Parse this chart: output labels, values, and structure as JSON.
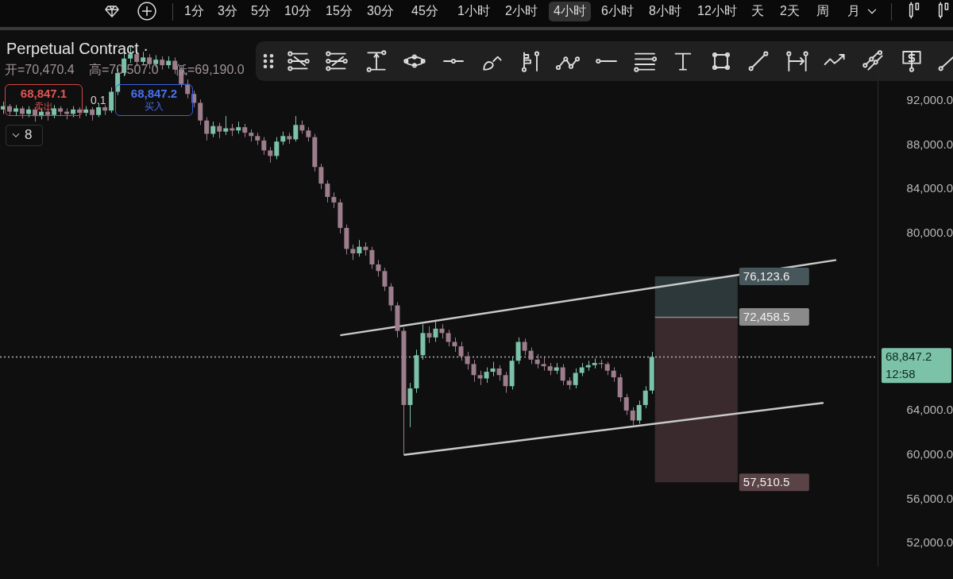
{
  "chart_data": {
    "type": "candlestick",
    "title": "Perpetual Contract ·",
    "categories": [
      null,
      null,
      null,
      null,
      null,
      null,
      null,
      null,
      null,
      null,
      null,
      null,
      null,
      null,
      null,
      null,
      null,
      null,
      null,
      null,
      null,
      null,
      null,
      null,
      null,
      null,
      null,
      null,
      null,
      null,
      null,
      null,
      null,
      null,
      null,
      null,
      null,
      null,
      null,
      null,
      null,
      null,
      null,
      null,
      null,
      null,
      null,
      null,
      null,
      null,
      null,
      null,
      null,
      null,
      null,
      null,
      null,
      null,
      null,
      null,
      null,
      null,
      null,
      null,
      null,
      null,
      null,
      null,
      null,
      null,
      null,
      null,
      null,
      null,
      null,
      null,
      null,
      null,
      null,
      null,
      null,
      null,
      null,
      null,
      null,
      null,
      null,
      null,
      null,
      null,
      null,
      null,
      null,
      null,
      null,
      null,
      null,
      null,
      null,
      null,
      null,
      null,
      null,
      null,
      null,
      null,
      null,
      null,
      null,
      null,
      null,
      null,
      null,
      null,
      null,
      null,
      null,
      null,
      null,
      null,
      null,
      null,
      null,
      null,
      null,
      null,
      null,
      null,
      null,
      null,
      null,
      null,
      null,
      null,
      null,
      null,
      null,
      null
    ],
    "ohlc": [
      [
        91200,
        91900,
        90800,
        91500
      ],
      [
        91500,
        91700,
        90700,
        91000
      ],
      [
        91000,
        91600,
        90600,
        91300
      ],
      [
        91300,
        91500,
        90400,
        90800
      ],
      [
        90800,
        91500,
        90500,
        91200
      ],
      [
        91200,
        91400,
        90100,
        90600
      ],
      [
        90600,
        91300,
        90300,
        91000
      ],
      [
        91000,
        91200,
        90200,
        90700
      ],
      [
        90700,
        91600,
        90400,
        91300
      ],
      [
        91300,
        91500,
        90600,
        91000
      ],
      [
        91000,
        91300,
        90300,
        90800
      ],
      [
        90800,
        91500,
        90500,
        91200
      ],
      [
        91200,
        91400,
        90400,
        90900
      ],
      [
        90900,
        91500,
        90600,
        91200
      ],
      [
        91200,
        91400,
        90200,
        90700
      ],
      [
        90700,
        91700,
        90500,
        91400
      ],
      [
        91400,
        91600,
        90700,
        91100
      ],
      [
        91100,
        93200,
        90900,
        92800
      ],
      [
        92800,
        94900,
        92500,
        94500
      ],
      [
        94500,
        96300,
        94200,
        95800
      ],
      [
        95800,
        96900,
        95400,
        96200
      ],
      [
        96200,
        96600,
        95100,
        95500
      ],
      [
        95500,
        96400,
        95200,
        95900
      ],
      [
        95900,
        96200,
        94900,
        95300
      ],
      [
        95300,
        96100,
        95000,
        95700
      ],
      [
        95700,
        96000,
        94800,
        95200
      ],
      [
        95200,
        96000,
        94900,
        95600
      ],
      [
        95600,
        95900,
        94400,
        94800
      ],
      [
        94800,
        95100,
        93200,
        93500
      ],
      [
        93500,
        93900,
        92200,
        92600
      ],
      [
        92600,
        92900,
        91400,
        91800
      ],
      [
        91800,
        92100,
        89800,
        90200
      ],
      [
        90200,
        90500,
        88400,
        89000
      ],
      [
        89000,
        90100,
        88700,
        89700
      ],
      [
        89700,
        90000,
        88600,
        89200
      ],
      [
        89200,
        90600,
        88900,
        89500
      ],
      [
        89500,
        89900,
        88800,
        89300
      ],
      [
        89300,
        90100,
        89000,
        89600
      ],
      [
        89600,
        89900,
        88700,
        89100
      ],
      [
        89100,
        89400,
        88300,
        88800
      ],
      [
        88800,
        89100,
        88000,
        88400
      ],
      [
        88400,
        88700,
        87100,
        87500
      ],
      [
        87500,
        87800,
        86400,
        87000
      ],
      [
        87000,
        88700,
        86700,
        88300
      ],
      [
        88300,
        89200,
        88000,
        88800
      ],
      [
        88800,
        89100,
        88100,
        88500
      ],
      [
        88500,
        90600,
        88300,
        89800
      ],
      [
        89800,
        90200,
        89000,
        89300
      ],
      [
        89300,
        89600,
        88300,
        88700
      ],
      [
        88700,
        89000,
        85600,
        86000
      ],
      [
        86000,
        86300,
        84000,
        84500
      ],
      [
        84500,
        84800,
        82800,
        83300
      ],
      [
        83300,
        83700,
        82300,
        82800
      ],
      [
        82800,
        83100,
        80000,
        80500
      ],
      [
        80500,
        80800,
        78100,
        78600
      ],
      [
        78600,
        79000,
        77600,
        78200
      ],
      [
        78200,
        79400,
        77900,
        78800
      ],
      [
        78800,
        79200,
        78000,
        78500
      ],
      [
        78500,
        78800,
        76800,
        77200
      ],
      [
        77200,
        77600,
        76100,
        76600
      ],
      [
        76600,
        76900,
        74800,
        75200
      ],
      [
        75200,
        75500,
        73000,
        73500
      ],
      [
        73500,
        73800,
        70600,
        71200
      ],
      [
        71200,
        71500,
        60000,
        64500
      ],
      [
        64500,
        66500,
        62500,
        66000
      ],
      [
        66000,
        69500,
        65600,
        69000
      ],
      [
        69000,
        71800,
        68600,
        71000
      ],
      [
        71000,
        71600,
        70100,
        70600
      ],
      [
        70600,
        72200,
        70200,
        71400
      ],
      [
        71400,
        71800,
        70500,
        71000
      ],
      [
        71000,
        71300,
        69800,
        70200
      ],
      [
        70200,
        70600,
        69300,
        69800
      ],
      [
        69800,
        70200,
        68500,
        68900
      ],
      [
        68900,
        69300,
        67700,
        68200
      ],
      [
        68200,
        68600,
        66600,
        67200
      ],
      [
        67200,
        67600,
        66300,
        66900
      ],
      [
        66900,
        67900,
        66500,
        67500
      ],
      [
        67500,
        68400,
        67100,
        67800
      ],
      [
        67800,
        68100,
        66700,
        67200
      ],
      [
        67200,
        67500,
        65600,
        66200
      ],
      [
        66200,
        68900,
        65900,
        68500
      ],
      [
        68500,
        70600,
        68200,
        70200
      ],
      [
        70200,
        70500,
        69000,
        69400
      ],
      [
        69400,
        69700,
        68200,
        68600
      ],
      [
        68600,
        69100,
        67800,
        68200
      ],
      [
        68200,
        68900,
        67600,
        68000
      ],
      [
        68000,
        68300,
        67200,
        67600
      ],
      [
        67600,
        68300,
        67300,
        67900
      ],
      [
        67900,
        68200,
        66300,
        66700
      ],
      [
        66700,
        67000,
        65900,
        66300
      ],
      [
        66300,
        67800,
        66000,
        67400
      ],
      [
        67400,
        68300,
        67100,
        67900
      ],
      [
        67900,
        68500,
        67600,
        68100
      ],
      [
        68100,
        68700,
        67800,
        68300
      ],
      [
        68300,
        68600,
        67800,
        68200
      ],
      [
        68200,
        68400,
        67200,
        67600
      ],
      [
        67600,
        67900,
        66600,
        67000
      ],
      [
        67000,
        67300,
        64800,
        65200
      ],
      [
        65200,
        65500,
        63600,
        64000
      ],
      [
        64000,
        64300,
        62700,
        63100
      ],
      [
        63100,
        64900,
        62800,
        64500
      ],
      [
        64500,
        66200,
        64200,
        65800
      ],
      [
        65800,
        69300,
        65500,
        68847.2
      ],
      null,
      null,
      null,
      null,
      null,
      null,
      null,
      null,
      null,
      null,
      null,
      null,
      null,
      null,
      null,
      null,
      null,
      null,
      null,
      null,
      null,
      null,
      null,
      null,
      null,
      null,
      null,
      null,
      null,
      null,
      null,
      null,
      null,
      null,
      null
    ],
    "colors": [
      "#7cc2a8",
      "#9c7d8c",
      "#7cc2a8",
      "#9c7d8c",
      "#7cc2a8",
      "#9c7d8c",
      "#7cc2a8",
      "#9c7d8c",
      "#7cc2a8",
      "#9c7d8c",
      "#9c7d8c",
      "#7cc2a8",
      "#9c7d8c",
      "#7cc2a8",
      "#9c7d8c",
      "#7cc2a8",
      "#9c7d8c",
      "#7cc2a8",
      "#7cc2a8",
      "#7cc2a8",
      "#7cc2a8",
      "#9c7d8c",
      "#7cc2a8",
      "#9c7d8c",
      "#7cc2a8",
      "#9c7d8c",
      "#7cc2a8",
      "#9c7d8c",
      "#9c7d8c",
      "#9c7d8c",
      "#9c7d8c",
      "#9c7d8c",
      "#9c7d8c",
      "#7cc2a8",
      "#9c7d8c",
      "#7cc2a8",
      "#9c7d8c",
      "#7cc2a8",
      "#9c7d8c",
      "#9c7d8c",
      "#9c7d8c",
      "#9c7d8c",
      "#9c7d8c",
      "#7cc2a8",
      "#7cc2a8",
      "#9c7d8c",
      "#7cc2a8",
      "#9c7d8c",
      "#9c7d8c",
      "#9c7d8c",
      "#9c7d8c",
      "#9c7d8c",
      "#9c7d8c",
      "#9c7d8c",
      "#9c7d8c",
      "#9c7d8c",
      "#7cc2a8",
      "#9c7d8c",
      "#9c7d8c",
      "#9c7d8c",
      "#9c7d8c",
      "#9c7d8c",
      "#9c7d8c",
      "#9c7d8c",
      "#7cc2a8",
      "#7cc2a8",
      "#7cc2a8",
      "#9c7d8c",
      "#7cc2a8",
      "#9c7d8c",
      "#9c7d8c",
      "#9c7d8c",
      "#9c7d8c",
      "#9c7d8c",
      "#9c7d8c",
      "#9c7d8c",
      "#7cc2a8",
      "#7cc2a8",
      "#9c7d8c",
      "#9c7d8c",
      "#7cc2a8",
      "#7cc2a8",
      "#9c7d8c",
      "#9c7d8c",
      "#9c7d8c",
      "#9c7d8c",
      "#9c7d8c",
      "#7cc2a8",
      "#9c7d8c",
      "#9c7d8c",
      "#7cc2a8",
      "#7cc2a8",
      "#7cc2a8",
      "#7cc2a8",
      "#9c7d8c",
      "#9c7d8c",
      "#9c7d8c",
      "#9c7d8c",
      "#9c7d8c",
      "#9c7d8c",
      "#7cc2a8",
      "#7cc2a8",
      "#7cc2a8",
      null,
      null,
      null,
      null,
      null,
      null,
      null,
      null,
      null,
      null,
      null,
      null,
      null,
      null,
      null,
      null,
      null,
      null,
      null,
      null,
      null,
      null,
      null,
      null,
      null,
      null,
      null,
      null,
      null,
      null,
      null,
      null,
      null,
      null,
      null
    ],
    "series": [
      {
        "type": "line",
        "color": "#c9c9c9",
        "values": [
          null,
          null,
          null,
          null,
          null,
          null,
          null,
          null,
          null,
          null,
          null,
          null,
          null,
          null,
          null,
          null,
          null,
          null,
          null,
          null,
          null,
          null,
          null,
          null,
          null,
          null,
          null,
          null,
          null,
          null,
          null,
          null,
          null,
          null,
          null,
          null,
          null,
          null,
          null,
          null,
          null,
          null,
          null,
          null,
          null,
          null,
          null,
          null,
          null,
          null,
          null,
          null,
          null,
          70800,
          null,
          null,
          null,
          null,
          null,
          null,
          null,
          null,
          null,
          null,
          null,
          null,
          null,
          null,
          null,
          null,
          null,
          null,
          null,
          null,
          null,
          null,
          null,
          null,
          null,
          null,
          null,
          null,
          null,
          null,
          null,
          null,
          null,
          null,
          null,
          null,
          null,
          null,
          null,
          null,
          null,
          null,
          null,
          null,
          null,
          null,
          null,
          null,
          null,
          null,
          null,
          null,
          null,
          null,
          null,
          null,
          null,
          null,
          null,
          null,
          null,
          null,
          null,
          null,
          null,
          null,
          null,
          null,
          null,
          null,
          null,
          null,
          null,
          null,
          null,
          null,
          null,
          77600,
          null,
          null,
          null,
          null,
          null,
          null
        ]
      },
      {
        "type": "line",
        "color": "#c9c9c9",
        "values": [
          null,
          null,
          null,
          null,
          null,
          null,
          null,
          null,
          null,
          null,
          null,
          null,
          null,
          null,
          null,
          null,
          null,
          null,
          null,
          null,
          null,
          null,
          null,
          null,
          null,
          null,
          null,
          null,
          null,
          null,
          null,
          null,
          null,
          null,
          null,
          null,
          null,
          null,
          null,
          null,
          null,
          null,
          null,
          null,
          null,
          null,
          null,
          null,
          null,
          null,
          null,
          null,
          null,
          null,
          null,
          null,
          null,
          null,
          null,
          null,
          null,
          null,
          null,
          60000,
          null,
          null,
          null,
          null,
          null,
          null,
          null,
          null,
          null,
          null,
          null,
          null,
          null,
          null,
          null,
          null,
          null,
          null,
          null,
          null,
          null,
          null,
          null,
          null,
          null,
          null,
          null,
          null,
          null,
          null,
          null,
          null,
          null,
          null,
          null,
          null,
          null,
          null,
          null,
          null,
          null,
          null,
          null,
          null,
          null,
          null,
          null,
          null,
          null,
          null,
          null,
          null,
          null,
          null,
          null,
          null,
          null,
          null,
          null,
          null,
          null,
          null,
          null,
          null,
          null,
          64700,
          null,
          null,
          null,
          null,
          null,
          null,
          null,
          null
        ]
      }
    ],
    "ylim": [
      50000,
      97000
    ],
    "yticks": [
      {
        "value": 52000,
        "label": "52,000.0"
      },
      {
        "value": 56000,
        "label": "56,000.0"
      },
      {
        "value": 60000,
        "label": "60,000.0"
      },
      {
        "value": 64000,
        "label": "64,000.0"
      },
      {
        "value": 80000,
        "label": "80,000.0"
      },
      {
        "value": 84000,
        "label": "84,000.0"
      },
      {
        "value": 88000,
        "label": "88,000.0"
      },
      {
        "value": 92000,
        "label": "92,000.0"
      }
    ],
    "tick_labels": "y",
    "bands": [
      {
        "axis": "y",
        "from": 72458.5,
        "to": 76123.6,
        "color": "#2d383b",
        "label": "76,123.6"
      },
      {
        "axis": "y",
        "from": 57510.5,
        "to": 72458.5,
        "color": "#3b2a2d",
        "label": "57,510.5"
      }
    ],
    "ref_lines": [
      {
        "axis": "y",
        "value": 68847.2,
        "label": "68,847.2",
        "color": "#b0b0b0",
        "line_style": "dotted"
      },
      {
        "axis": "y",
        "value": 72458.5,
        "label": "72,458.5",
        "color": "#8a8a8a",
        "line_style": "solid"
      }
    ],
    "annotations": [
      "开=70,470.4",
      "高=70,507.0",
      "低=69,190.0",
      "68,847.1",
      "卖出",
      "0.1",
      "68,847.2",
      "买入",
      "8",
      "1分",
      "3分",
      "5分",
      "10分",
      "15分",
      "30分",
      "45分",
      "1小时",
      "2小时",
      "4小时",
      "6小时",
      "8小时",
      "12小时",
      "天",
      "2天",
      "周",
      "月",
      "12:58"
    ]
  }
}
